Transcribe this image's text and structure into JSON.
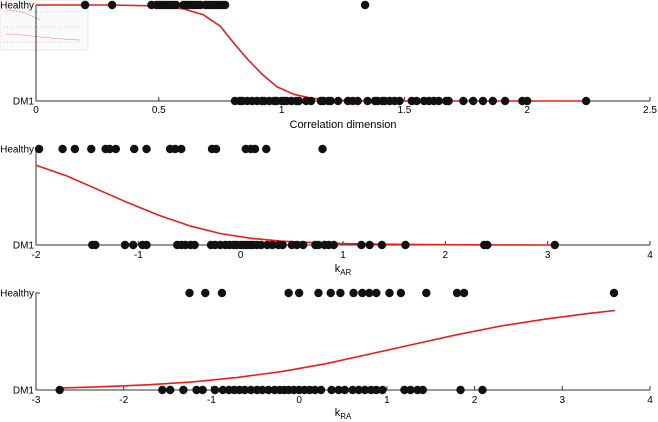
{
  "colors": {
    "points": "#111111",
    "curve": "#e3201b",
    "axis": "#333333",
    "inset": "#c0392b"
  },
  "chart_data": [
    {
      "type": "scatter",
      "xlabel": "Correlation dimension",
      "xlabel_sub": "",
      "categories": [
        "DM1",
        "Healthy"
      ],
      "xlim": [
        0,
        2.5
      ],
      "x_ticks": [
        "0",
        "0.5",
        "1",
        "1.5",
        "2",
        "2.5"
      ],
      "x_tick_values": [
        0,
        0.5,
        1,
        1.5,
        2,
        2.5
      ],
      "healthy_points": [
        0.2,
        0.31,
        0.47,
        0.49,
        0.5,
        0.51,
        0.52,
        0.53,
        0.54,
        0.55,
        0.56,
        0.57,
        0.6,
        0.61,
        0.62,
        0.63,
        0.64,
        0.65,
        0.66,
        0.67,
        0.69,
        0.7,
        0.71,
        0.72,
        0.73,
        0.74,
        0.75,
        0.76,
        0.77,
        1.34
      ],
      "dm1_points": [
        0.81,
        0.83,
        0.84,
        0.86,
        0.88,
        0.9,
        0.92,
        0.93,
        0.95,
        0.97,
        0.98,
        1.0,
        1.01,
        1.02,
        1.04,
        1.06,
        1.07,
        1.1,
        1.12,
        1.16,
        1.17,
        1.19,
        1.2,
        1.23,
        1.27,
        1.29,
        1.31,
        1.35,
        1.38,
        1.39,
        1.41,
        1.42,
        1.44,
        1.46,
        1.48,
        1.53,
        1.55,
        1.58,
        1.6,
        1.62,
        1.64,
        1.67,
        1.68,
        1.74,
        1.78,
        1.82,
        1.86,
        1.91,
        1.98,
        2.0,
        2.24
      ],
      "curve": {
        "x": [
          0.0,
          0.3,
          0.5,
          0.6,
          0.68,
          0.75,
          0.8,
          0.86,
          0.92,
          0.98,
          1.05,
          1.12,
          1.2,
          1.35,
          1.6,
          2.0,
          2.24
        ],
        "y": [
          1.0,
          1.0,
          0.99,
          0.96,
          0.9,
          0.78,
          0.62,
          0.44,
          0.28,
          0.15,
          0.07,
          0.03,
          0.01,
          0.0,
          0.0,
          0.0,
          0.0
        ]
      }
    },
    {
      "type": "scatter",
      "xlabel": "k",
      "xlabel_sub": "AR",
      "categories": [
        "DM1",
        "Healthy"
      ],
      "xlim": [
        -2,
        4
      ],
      "x_ticks": [
        "-2",
        "-1",
        "0",
        "1",
        "2",
        "3",
        "4"
      ],
      "x_tick_values": [
        -2,
        -1,
        0,
        1,
        2,
        3,
        4
      ],
      "healthy_points": [
        -1.97,
        -1.74,
        -1.62,
        -1.46,
        -1.32,
        -1.28,
        -1.22,
        -1.04,
        -0.92,
        -0.69,
        -0.64,
        -0.58,
        -0.28,
        -0.24,
        0.05,
        0.1,
        0.14,
        0.25,
        0.8
      ],
      "dm1_points": [
        -1.45,
        -1.42,
        -1.13,
        -1.05,
        -0.96,
        -0.92,
        -0.62,
        -0.58,
        -0.54,
        -0.49,
        -0.45,
        -0.29,
        -0.25,
        -0.2,
        -0.15,
        -0.11,
        -0.07,
        -0.04,
        0.0,
        0.03,
        0.06,
        0.09,
        0.12,
        0.16,
        0.2,
        0.26,
        0.31,
        0.37,
        0.41,
        0.5,
        0.55,
        0.61,
        0.73,
        0.76,
        0.82,
        0.86,
        0.91,
        1.18,
        1.26,
        1.38,
        1.61,
        2.38,
        2.41,
        3.07
      ],
      "curve": {
        "x": [
          -2.0,
          -1.7,
          -1.4,
          -1.1,
          -0.8,
          -0.5,
          -0.2,
          0.1,
          0.4,
          0.7,
          1.0,
          1.4,
          1.8,
          2.2,
          2.6,
          3.05
        ],
        "y": [
          0.83,
          0.72,
          0.58,
          0.44,
          0.31,
          0.2,
          0.12,
          0.07,
          0.04,
          0.025,
          0.015,
          0.008,
          0.004,
          0.002,
          0.001,
          0.0
        ]
      }
    },
    {
      "type": "scatter",
      "xlabel": "k",
      "xlabel_sub": "RA",
      "categories": [
        "DM1",
        "Healthy"
      ],
      "xlim": [
        -3,
        4
      ],
      "x_ticks": [
        "-3",
        "-2",
        "-1",
        "0",
        "1",
        "2",
        "3",
        "4"
      ],
      "x_tick_values": [
        -3,
        -2,
        -1,
        0,
        1,
        2,
        3,
        4
      ],
      "healthy_points": [
        -1.25,
        -1.07,
        -0.88,
        -0.12,
        0.0,
        0.22,
        0.36,
        0.47,
        0.62,
        0.72,
        0.8,
        0.88,
        1.03,
        1.16,
        1.45,
        1.8,
        1.88,
        3.59
      ],
      "dm1_points": [
        -2.73,
        -1.56,
        -1.47,
        -1.32,
        -1.17,
        -1.1,
        -0.96,
        -0.87,
        -0.8,
        -0.74,
        -0.68,
        -0.62,
        -0.55,
        -0.48,
        -0.42,
        -0.35,
        -0.28,
        -0.22,
        -0.17,
        -0.12,
        -0.06,
        0.0,
        0.06,
        0.12,
        0.18,
        0.25,
        0.37,
        0.45,
        0.52,
        0.61,
        0.68,
        0.75,
        0.82,
        0.88,
        0.95,
        1.2,
        1.27,
        1.35,
        1.41,
        1.84,
        2.09
      ],
      "curve": {
        "x": [
          -2.73,
          -2.2,
          -1.7,
          -1.2,
          -0.7,
          -0.2,
          0.3,
          0.8,
          1.3,
          1.8,
          2.3,
          2.8,
          3.3,
          3.6
        ],
        "y": [
          0.02,
          0.035,
          0.055,
          0.085,
          0.13,
          0.19,
          0.27,
          0.37,
          0.47,
          0.57,
          0.66,
          0.73,
          0.79,
          0.82
        ]
      }
    }
  ]
}
